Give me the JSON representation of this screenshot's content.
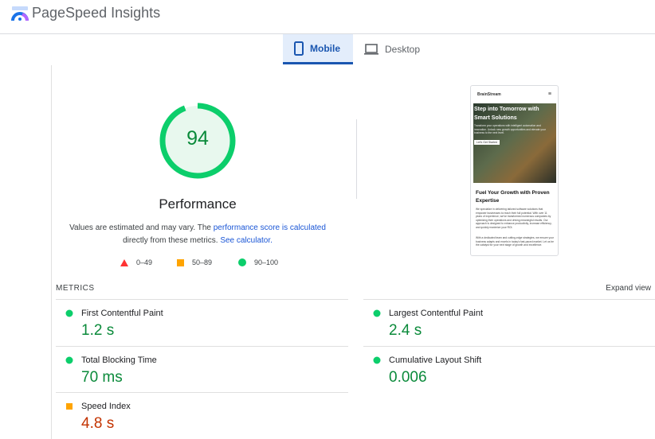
{
  "header": {
    "title": "PageSpeed Insights",
    "logo_icon": "pagespeed-gauge-icon"
  },
  "tabs": [
    {
      "label": "Mobile",
      "icon": "phone-icon",
      "active": true
    },
    {
      "label": "Desktop",
      "icon": "laptop-icon",
      "active": false
    }
  ],
  "score": {
    "value": "94",
    "fraction": 0.94,
    "color": "#0cce6b",
    "label": "Performance"
  },
  "description": {
    "text1": "Values are estimated and may vary. The ",
    "link1": "performance score is calculated",
    "text2": "directly from these metrics. ",
    "link2": "See calculator."
  },
  "legend": [
    {
      "range": "0–49",
      "shape": "triangle",
      "color": "#ff3333"
    },
    {
      "range": "50–89",
      "shape": "square",
      "color": "#ffa400"
    },
    {
      "range": "90–100",
      "shape": "circle",
      "color": "#0cce6b"
    }
  ],
  "screenshot": {
    "brand": "BrainStream",
    "hero_title": "Step into Tomorrow with Smart Solutions",
    "hero_text": "Transform your operations with intelligent automation and innovation. Unlock new growth opportunities and elevate your business to the next level.",
    "hero_button": "Let's Get Started",
    "section_title": "Fuel Your Growth with Proven Expertise",
    "para1": "We specialize in delivering tailored software solutions that empower businesses to reach their full potential. With over 11 years of experience, we've transformed numerous companies by optimizing their operations and driving meaningful results. Our approach is designed to enhance productivity, increase efficiency, and quickly maximize your ROI.",
    "para2": "With a dedicated team and cutting-edge strategies, we ensure your business adapts and excels in today's fast-paced market. Let us be the catalyst for your next stage of growth and excellence."
  },
  "metrics": {
    "label": "METRICS",
    "expand": "Expand view",
    "items": [
      {
        "name": "First Contentful Paint",
        "value": "1.2 s",
        "rating": "good"
      },
      {
        "name": "Largest Contentful Paint",
        "value": "2.4 s",
        "rating": "good"
      },
      {
        "name": "Total Blocking Time",
        "value": "70 ms",
        "rating": "good"
      },
      {
        "name": "Cumulative Layout Shift",
        "value": "0.006",
        "rating": "good"
      },
      {
        "name": "Speed Index",
        "value": "4.8 s",
        "rating": "average"
      }
    ]
  }
}
